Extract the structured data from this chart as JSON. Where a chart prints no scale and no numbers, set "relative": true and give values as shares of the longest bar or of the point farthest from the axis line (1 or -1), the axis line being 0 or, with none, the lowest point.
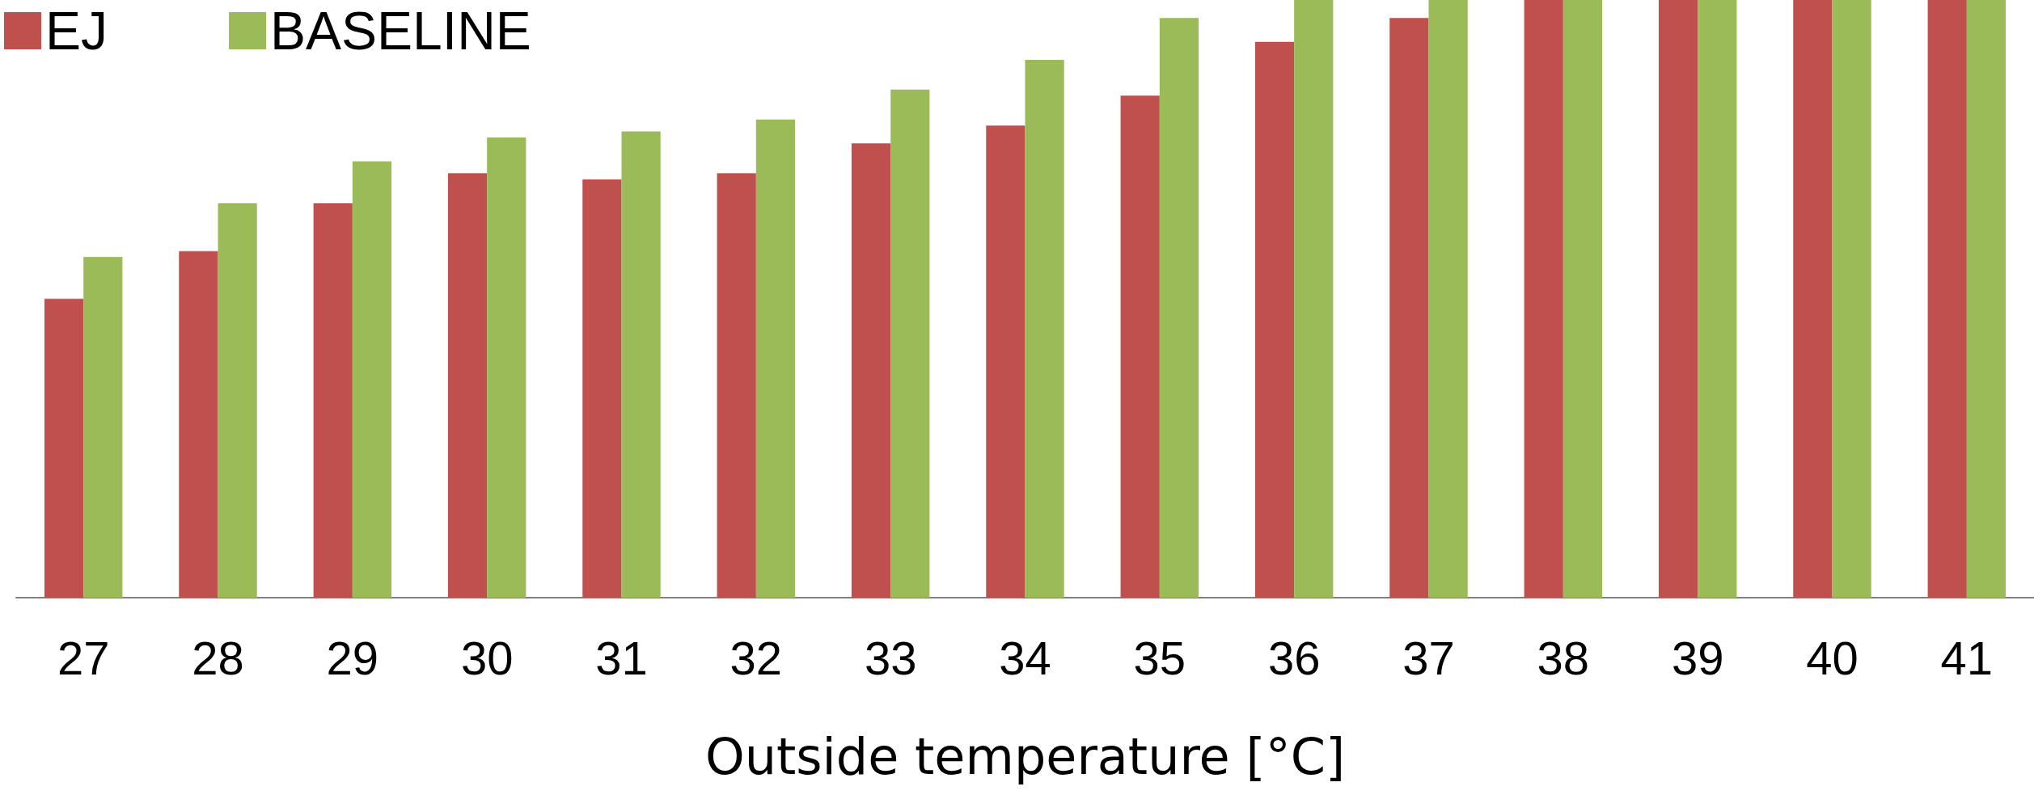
{
  "chart_data": {
    "type": "bar",
    "relative": true,
    "xlabel": "Outside temperature [°C]",
    "categories": [
      "27",
      "28",
      "29",
      "30",
      "31",
      "32",
      "33",
      "34",
      "35",
      "36",
      "37",
      "38",
      "39",
      "40",
      "41"
    ],
    "series": [
      {
        "name": "EJ",
        "color": "#c0504d",
        "values": [
          0.5,
          0.58,
          0.66,
          0.71,
          0.7,
          0.71,
          0.76,
          0.79,
          0.84,
          0.93,
          0.97,
          1,
          1,
          1,
          1
        ]
      },
      {
        "name": "BASELINE",
        "color": "#9bbb59",
        "values": [
          0.57,
          0.66,
          0.73,
          0.77,
          0.78,
          0.8,
          0.85,
          0.9,
          0.97,
          1,
          1,
          1,
          1,
          1,
          1
        ]
      }
    ],
    "legend": "top left",
    "grid": false
  }
}
